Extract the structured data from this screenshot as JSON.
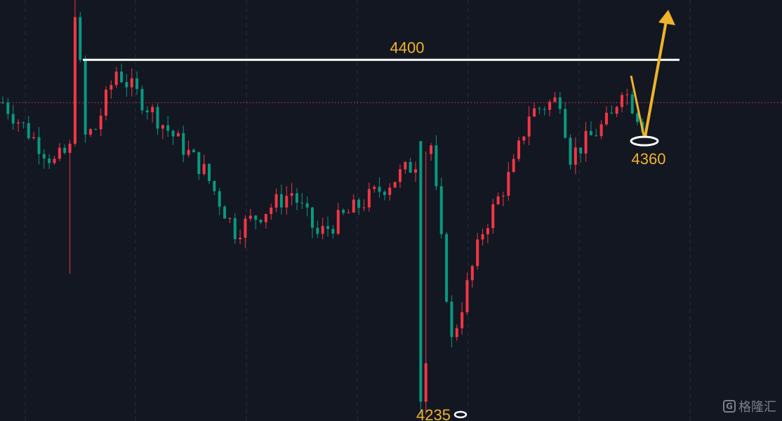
{
  "chart_data": {
    "type": "candlestick",
    "title": "",
    "xlabel": "",
    "ylabel": "",
    "ylim": [
      4231,
      4428
    ],
    "grid": true,
    "colors": {
      "up": "#f23645",
      "down": "#089981",
      "background": "#131722",
      "annotation": "#f0b429",
      "level_line": "#ffffff",
      "current_price_line": "#f23645"
    },
    "current_price": 4380,
    "annotations": {
      "resistance_level": {
        "label": "4400",
        "value": 4400
      },
      "target_low": {
        "label": "4360",
        "value": 4362
      },
      "recent_low": {
        "label": "4235",
        "value": 4234
      }
    }
  },
  "watermark": {
    "text": "格隆汇"
  }
}
